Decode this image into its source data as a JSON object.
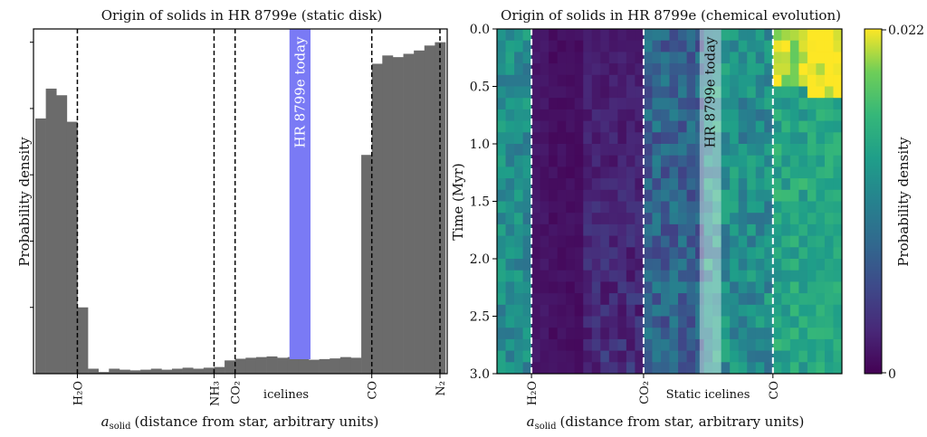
{
  "chart_data": [
    {
      "type": "bar",
      "title": "Origin of solids in HR 8799e (static disk)",
      "xlabel_symbol": "a",
      "xlabel_sub": "solid",
      "xlabel_rest": "(distance from star, arbitrary units)",
      "ylabel": "Probability density",
      "bin_count": 39,
      "values": [
        0.77,
        0.86,
        0.84,
        0.76,
        0.2,
        0.015,
        0.005,
        0.015,
        0.012,
        0.01,
        0.012,
        0.015,
        0.012,
        0.015,
        0.018,
        0.015,
        0.018,
        0.02,
        0.04,
        0.045,
        0.048,
        0.05,
        0.052,
        0.048,
        0.05,
        0.045,
        0.042,
        0.044,
        0.046,
        0.05,
        0.048,
        0.66,
        0.935,
        0.96,
        0.955,
        0.965,
        0.975,
        0.99,
        1.0
      ],
      "ylim": [
        0,
        1.04
      ],
      "color": "#6b6b6b",
      "icelines": [
        {
          "label": "H₂O",
          "bin": 4
        },
        {
          "label": "NH₃",
          "bin": 17
        },
        {
          "label": "CO₂",
          "bin": 19
        },
        {
          "label": "CO",
          "bin": 32
        },
        {
          "label": "N₂",
          "bin": 39
        }
      ],
      "xtick_text": "icelines",
      "highlight": {
        "label": "HR 8799e today",
        "bin_start": 24,
        "bin_end": 26,
        "color": "#7a7af5"
      }
    },
    {
      "type": "heatmap",
      "title": "Origin of solids in HR 8799e (chemical evolution)",
      "xlabel_symbol": "a",
      "xlabel_sub": "solid",
      "xlabel_rest": "(distance from star, arbitrary units)",
      "ylabel": "Time (Myr)",
      "yticks": [
        "0.0",
        "0.5",
        "1.0",
        "1.5",
        "2.0",
        "2.5",
        "3.0"
      ],
      "ylim": [
        0,
        3.0
      ],
      "columns": 40,
      "rows": 30,
      "colorbar": {
        "label": "Probability density",
        "min_label": "0",
        "max_label": "0.022",
        "min": 0,
        "max": 0.022
      },
      "icelines": [
        {
          "label": "H₂O",
          "col": 4
        },
        {
          "label": "CO₂",
          "col": 17
        },
        {
          "label": "CO",
          "col": 32
        }
      ],
      "xtick_text": "Static icelines",
      "highlight": {
        "label": "HR 8799e today",
        "col_start": 23.5,
        "col_end": 26
      }
    }
  ]
}
